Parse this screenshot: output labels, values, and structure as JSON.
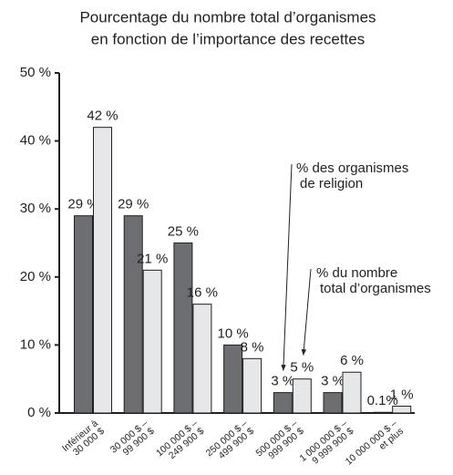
{
  "chart_data": {
    "type": "bar",
    "title": [
      "Pourcentage du nombre total d’organismes",
      "en fonction de l’importance des recettes"
    ],
    "categories": [
      [
        "Inférieur à",
        "30 000 $"
      ],
      [
        "30 000 $ –",
        "99 900 $"
      ],
      [
        "100 000 $ –",
        "249 900 $"
      ],
      [
        "250 000 $ –",
        "499 900 $"
      ],
      [
        "500 000 $ –",
        "999 900 $"
      ],
      [
        "1 000 000 $ –",
        "9 999 900 $"
      ],
      [
        "10 000 000 $ –",
        "et plus"
      ]
    ],
    "series": [
      {
        "name": [
          "% des organismes",
          "de religion"
        ],
        "color": "#6d6e71",
        "values": [
          29,
          29,
          25,
          10,
          3,
          3,
          0.1
        ],
        "value_labels": [
          "29 %",
          "29 %",
          "25 %",
          "10 %",
          "3 %",
          "3 %",
          "0.1%"
        ]
      },
      {
        "name": [
          "% du nombre",
          "total d’organismes"
        ],
        "color": "#e6e7e8",
        "values": [
          42,
          21,
          16,
          8,
          5,
          6,
          1
        ],
        "value_labels": [
          "42 %",
          "21 %",
          "16 %",
          "8 %",
          "5 %",
          "6 %",
          "1 %"
        ]
      }
    ],
    "ylim": [
      0,
      50
    ],
    "yticks": [
      {
        "value": 0,
        "label": "0 %"
      },
      {
        "value": 10,
        "label": "10 %"
      },
      {
        "value": 20,
        "label": "20 %"
      },
      {
        "value": 30,
        "label": "30 %"
      },
      {
        "value": 40,
        "label": "40 %"
      },
      {
        "value": 50,
        "label": "50 %"
      }
    ]
  }
}
